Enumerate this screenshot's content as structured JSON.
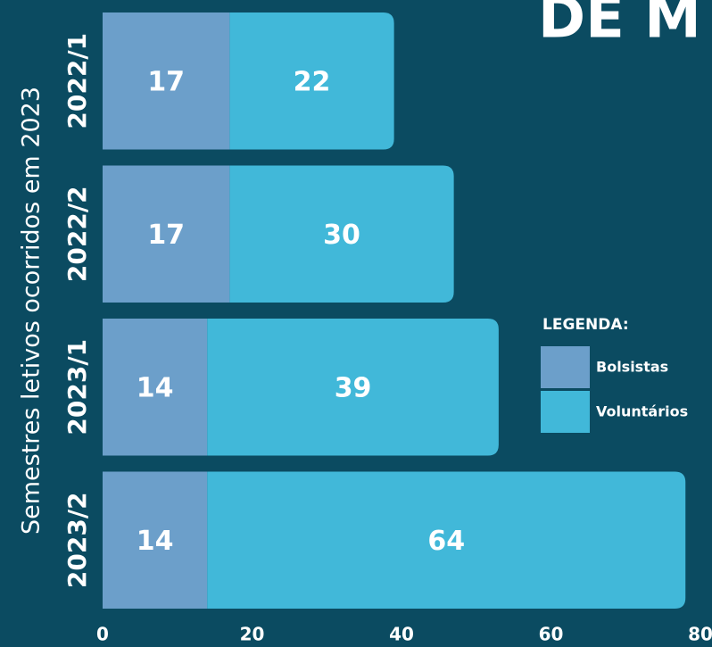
{
  "chart_data": {
    "type": "stacked_barh",
    "title": "DE M",
    "y_axis_label": "Semestres letivos ocorridos em 2023",
    "categories": [
      "2022/1",
      "2022/2",
      "2023/1",
      "2023/2"
    ],
    "series": [
      {
        "name": "Bolsistas",
        "color": "#6c9fca",
        "values": [
          17,
          17,
          14,
          14
        ]
      },
      {
        "name": "Voluntários",
        "color": "#41b8d9",
        "values": [
          22,
          30,
          39,
          64
        ]
      }
    ],
    "legend_title": "LEGENDA:",
    "xlim": [
      0,
      80
    ],
    "xticks": [
      0,
      20,
      40,
      60,
      80
    ]
  }
}
